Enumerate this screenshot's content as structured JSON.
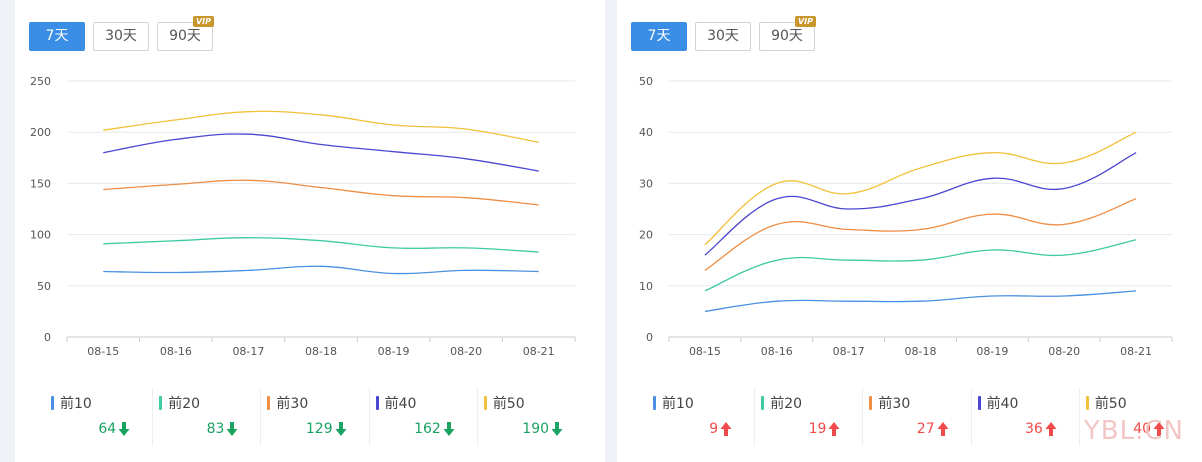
{
  "buttons": {
    "b7": "7天",
    "b30": "30天",
    "b90": "90天",
    "vip": "VIP"
  },
  "colors": {
    "top10": "#4a90e2",
    "top20": "#3fc9a4",
    "top30": "#ef8e45",
    "top40": "#4b46d1",
    "top50": "#f2c03a",
    "up": "#f04a4a",
    "down": "#1aa260",
    "active_btn": "#3a8ee6"
  },
  "watermark": "YBL.CN",
  "chart_data": [
    {
      "type": "line",
      "x": [
        "08-15",
        "08-16",
        "08-17",
        "08-18",
        "08-19",
        "08-20",
        "08-21"
      ],
      "ylim": [
        0,
        250
      ],
      "yticks": [
        0,
        50,
        100,
        150,
        200,
        250
      ],
      "grid": true,
      "series": [
        {
          "name": "前10",
          "color": "#4a90e2",
          "values": [
            64,
            63,
            65,
            69,
            62,
            65,
            64
          ]
        },
        {
          "name": "前20",
          "color": "#3fc9a4",
          "values": [
            91,
            94,
            97,
            94,
            87,
            87,
            83
          ]
        },
        {
          "name": "前30",
          "color": "#ef8e45",
          "values": [
            144,
            149,
            153,
            146,
            138,
            136,
            129
          ]
        },
        {
          "name": "前40",
          "color": "#4b46d1",
          "values": [
            180,
            193,
            198,
            188,
            181,
            174,
            162
          ]
        },
        {
          "name": "前50",
          "color": "#f2c03a",
          "values": [
            202,
            212,
            220,
            217,
            207,
            203,
            190
          ]
        }
      ],
      "legend": [
        {
          "name": "前10",
          "value": "64",
          "trend": "down"
        },
        {
          "name": "前20",
          "value": "83",
          "trend": "down"
        },
        {
          "name": "前30",
          "value": "129",
          "trend": "down"
        },
        {
          "name": "前40",
          "value": "162",
          "trend": "down"
        },
        {
          "name": "前50",
          "value": "190",
          "trend": "down"
        }
      ]
    },
    {
      "type": "line",
      "x": [
        "08-15",
        "08-16",
        "08-17",
        "08-18",
        "08-19",
        "08-20",
        "08-21"
      ],
      "ylim": [
        0,
        50
      ],
      "yticks": [
        0,
        10,
        20,
        30,
        40,
        50
      ],
      "grid": true,
      "series": [
        {
          "name": "前10",
          "color": "#4a90e2",
          "values": [
            5,
            7,
            7,
            7,
            8,
            8,
            9
          ]
        },
        {
          "name": "前20",
          "color": "#3fc9a4",
          "values": [
            9,
            15,
            15,
            15,
            17,
            16,
            19
          ]
        },
        {
          "name": "前30",
          "color": "#ef8e45",
          "values": [
            13,
            22,
            21,
            21,
            24,
            22,
            27
          ]
        },
        {
          "name": "前40",
          "color": "#4b46d1",
          "values": [
            16,
            27,
            25,
            27,
            31,
            29,
            36
          ]
        },
        {
          "name": "前50",
          "color": "#f2c03a",
          "values": [
            18,
            30,
            28,
            33,
            36,
            34,
            40
          ]
        }
      ],
      "legend": [
        {
          "name": "前10",
          "value": "9",
          "trend": "up"
        },
        {
          "name": "前20",
          "value": "19",
          "trend": "up"
        },
        {
          "name": "前30",
          "value": "27",
          "trend": "up"
        },
        {
          "name": "前40",
          "value": "36",
          "trend": "up"
        },
        {
          "name": "前50",
          "value": "40",
          "trend": "up"
        }
      ]
    }
  ]
}
